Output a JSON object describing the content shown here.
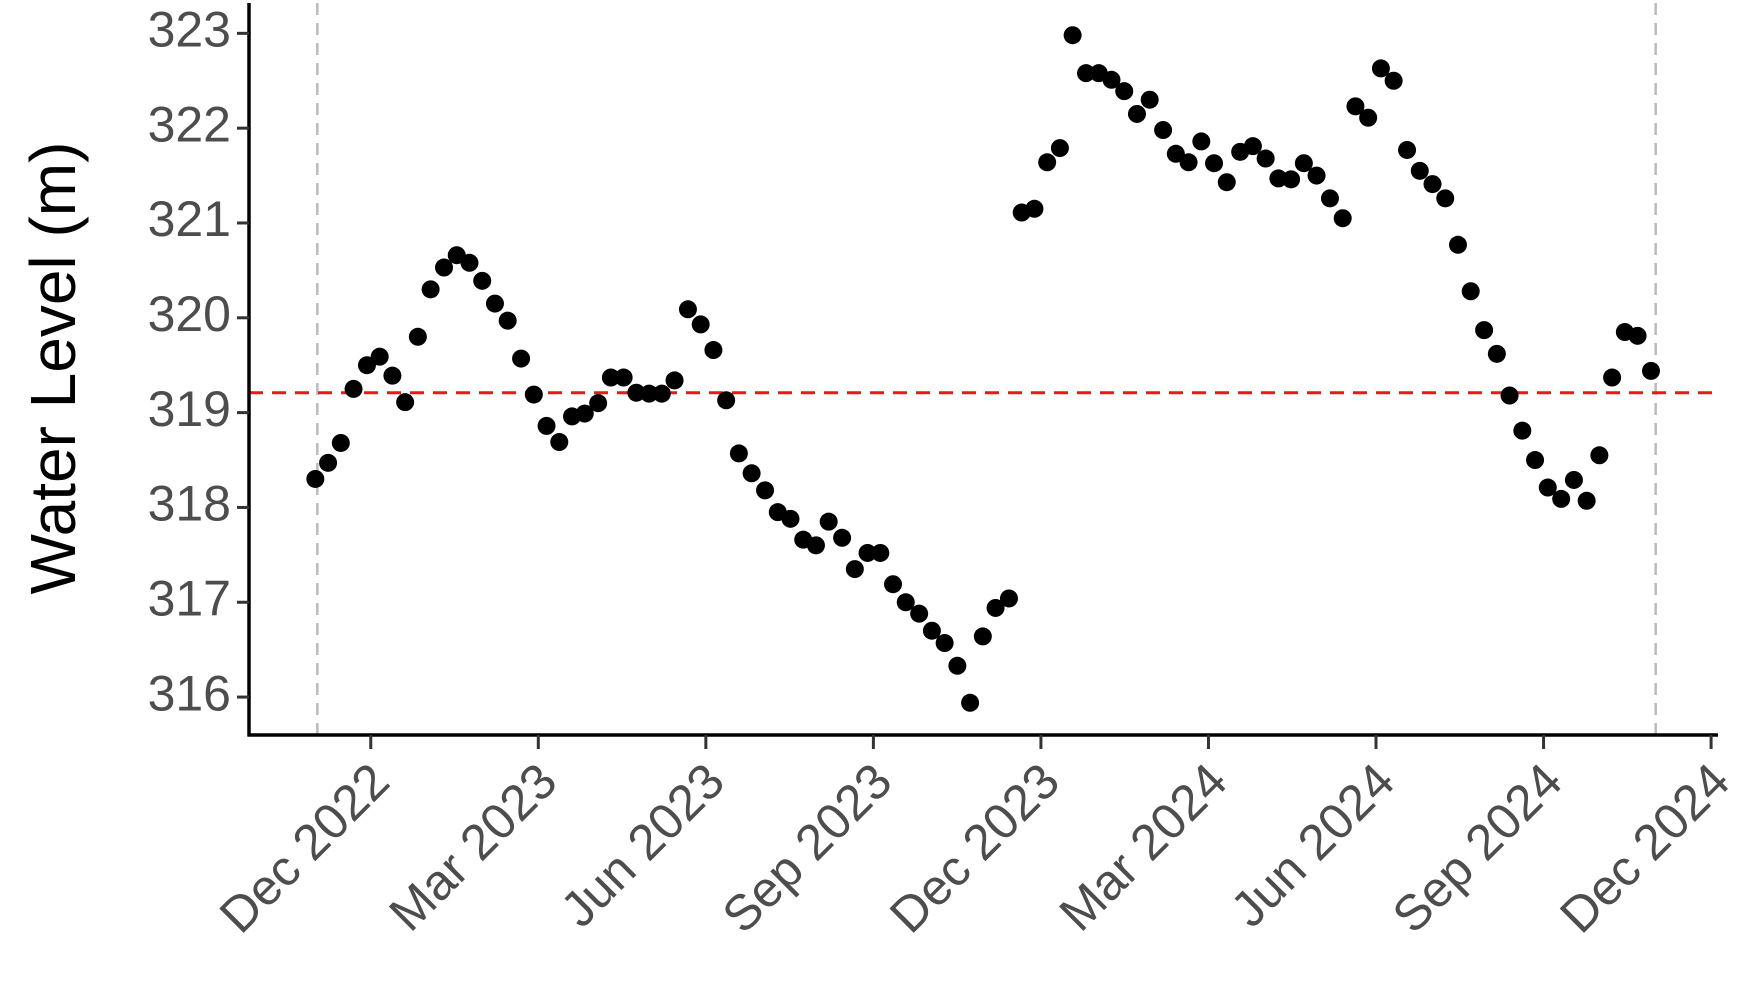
{
  "chart_data": {
    "type": "scatter",
    "y_label": "Water Level (m)",
    "color": "#000000",
    "x": [
      2022.834,
      2022.853,
      2022.872,
      2022.891,
      2022.911,
      2022.93,
      2022.949,
      2022.968,
      2022.987,
      2023.006,
      2023.026,
      2023.045,
      2023.064,
      2023.083,
      2023.102,
      2023.121,
      2023.141,
      2023.16,
      2023.179,
      2023.198,
      2023.217,
      2023.236,
      2023.256,
      2023.275,
      2023.294,
      2023.313,
      2023.332,
      2023.351,
      2023.37,
      2023.39,
      2023.409,
      2023.428,
      2023.447,
      2023.466,
      2023.485,
      2023.505,
      2023.524,
      2023.543,
      2023.562,
      2023.581,
      2023.6,
      2023.62,
      2023.639,
      2023.658,
      2023.677,
      2023.696,
      2023.715,
      2023.735,
      2023.754,
      2023.773,
      2023.792,
      2023.811,
      2023.83,
      2023.849,
      2023.869,
      2023.888,
      2023.907,
      2023.926,
      2023.945,
      2023.964,
      2023.984,
      2024.003,
      2024.022,
      2024.041,
      2024.06,
      2024.079,
      2024.099,
      2024.118,
      2024.137,
      2024.156,
      2024.175,
      2024.194,
      2024.214,
      2024.233,
      2024.252,
      2024.271,
      2024.29,
      2024.309,
      2024.328,
      2024.348,
      2024.367,
      2024.386,
      2024.405,
      2024.424,
      2024.443,
      2024.463,
      2024.482,
      2024.501,
      2024.52,
      2024.539,
      2024.558,
      2024.578,
      2024.597,
      2024.616,
      2024.635,
      2024.654,
      2024.673,
      2024.693,
      2024.712,
      2024.731,
      2024.75,
      2024.769,
      2024.788,
      2024.807,
      2024.827
    ],
    "values": [
      318.3,
      318.47,
      318.68,
      319.25,
      319.5,
      319.59,
      319.39,
      319.11,
      319.8,
      320.3,
      320.53,
      320.66,
      320.58,
      320.39,
      320.15,
      319.97,
      319.57,
      319.19,
      318.86,
      318.69,
      318.96,
      318.99,
      319.1,
      319.37,
      319.37,
      319.21,
      319.2,
      319.2,
      319.34,
      320.09,
      319.93,
      319.66,
      319.13,
      318.57,
      318.36,
      318.18,
      317.95,
      317.88,
      317.66,
      317.6,
      317.85,
      317.68,
      317.35,
      317.52,
      317.52,
      317.19,
      317.0,
      316.88,
      316.7,
      316.57,
      316.33,
      315.94,
      316.64,
      316.94,
      317.04,
      321.11,
      321.15,
      321.64,
      321.79,
      322.98,
      322.58,
      322.58,
      322.51,
      322.39,
      322.15,
      322.3,
      321.98,
      321.73,
      321.64,
      321.86,
      321.63,
      321.43,
      321.75,
      321.81,
      321.68,
      321.47,
      321.46,
      321.63,
      321.5,
      321.26,
      321.05,
      322.23,
      322.11,
      322.63,
      322.5,
      321.77,
      321.55,
      321.41,
      321.26,
      320.77,
      320.28,
      319.87,
      319.62,
      319.18,
      318.81,
      318.5,
      318.21,
      318.09,
      318.29,
      318.07,
      318.55,
      319.37,
      319.85,
      319.81,
      319.44
    ],
    "xlim": [
      2022.735,
      2024.927
    ],
    "ylim": [
      315.6,
      323.32
    ],
    "xticks": [
      {
        "value": 2022.9167,
        "label": "Dec 2022"
      },
      {
        "value": 2023.1667,
        "label": "Mar 2023"
      },
      {
        "value": 2023.4167,
        "label": "Jun 2023"
      },
      {
        "value": 2023.6667,
        "label": "Sep 2023"
      },
      {
        "value": 2023.9167,
        "label": "Dec 2023"
      },
      {
        "value": 2024.1667,
        "label": "Mar 2024"
      },
      {
        "value": 2024.4167,
        "label": "Jun 2024"
      },
      {
        "value": 2024.6667,
        "label": "Sep 2024"
      },
      {
        "value": 2024.9167,
        "label": "Dec 2024"
      }
    ],
    "yticks": [
      316,
      317,
      318,
      319,
      320,
      321,
      322,
      323
    ],
    "hline": {
      "value": 319.21,
      "color": "#e41a1c"
    },
    "vlines": {
      "values": [
        2022.837,
        2024.834
      ],
      "color": "#bbbbbb"
    }
  }
}
